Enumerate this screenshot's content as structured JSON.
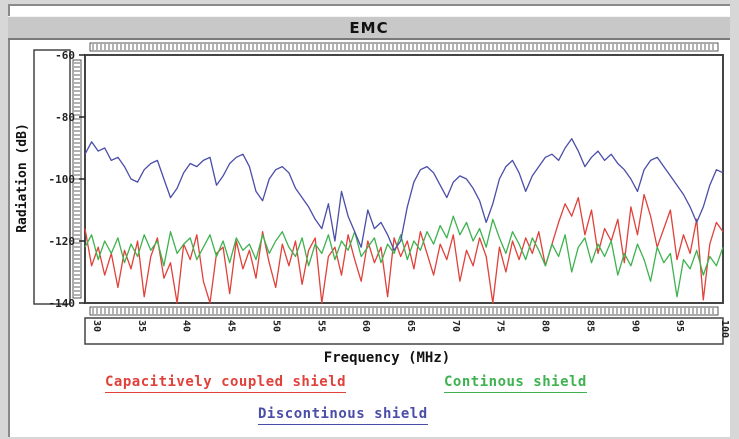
{
  "window": {
    "title": "EMC"
  },
  "chart_data": {
    "type": "line",
    "title": "EMC",
    "xlabel": "Frequency (MHz)",
    "ylabel": "Radiation (dB)",
    "xlim": [
      30,
      1000
    ],
    "ylim": [
      -140,
      -60
    ],
    "x_ticks": [
      30,
      35,
      40,
      45,
      50,
      55,
      60,
      65,
      70,
      75,
      80,
      85,
      90,
      95,
      100
    ],
    "y_ticks": [
      -60,
      -80,
      -100,
      -120,
      -140
    ],
    "grid": false,
    "legend_position": "bottom",
    "series": [
      {
        "name": "Capacitively coupled shield",
        "color": "#e0413a",
        "x": [
          30,
          40,
          50,
          60,
          70,
          80,
          90,
          100,
          110,
          120,
          130,
          140,
          150,
          160,
          170,
          180,
          190,
          200,
          210,
          220,
          230,
          240,
          250,
          260,
          270,
          280,
          290,
          300,
          310,
          320,
          330,
          340,
          350,
          360,
          370,
          380,
          390,
          400,
          410,
          420,
          430,
          440,
          450,
          460,
          470,
          480,
          490,
          500,
          510,
          520,
          530,
          540,
          550,
          560,
          570,
          580,
          590,
          600,
          610,
          620,
          630,
          640,
          650,
          660,
          670,
          680,
          690,
          700,
          710,
          720,
          730,
          740,
          750,
          760,
          770,
          780,
          790,
          800,
          810,
          820,
          830,
          840,
          850,
          860,
          870,
          880,
          890,
          900,
          910,
          920,
          930,
          940,
          950,
          960,
          970,
          980,
          990,
          1000
        ],
        "values": [
          -116,
          -128,
          -122,
          -131,
          -124,
          -135,
          -123,
          -129,
          -120,
          -138,
          -125,
          -119,
          -132,
          -127,
          -140,
          -121,
          -126,
          -118,
          -133,
          -140,
          -124,
          -122,
          -137,
          -120,
          -129,
          -123,
          -132,
          -117,
          -127,
          -135,
          -121,
          -128,
          -120,
          -134,
          -123,
          -119,
          -140,
          -125,
          -122,
          -131,
          -118,
          -126,
          -133,
          -120,
          -127,
          -122,
          -138,
          -119,
          -125,
          -120,
          -129,
          -117,
          -124,
          -131,
          -121,
          -126,
          -118,
          -133,
          -123,
          -128,
          -119,
          -125,
          -140,
          -122,
          -130,
          -120,
          -126,
          -119,
          -124,
          -117,
          -128,
          -121,
          -114,
          -108,
          -112,
          -106,
          -118,
          -110,
          -124,
          -116,
          -120,
          -113,
          -127,
          -109,
          -118,
          -105,
          -112,
          -122,
          -116,
          -110,
          -126,
          -118,
          -124,
          -113,
          -139,
          -121,
          -114,
          -117
        ]
      },
      {
        "name": "Continous shield",
        "color": "#3eb24f",
        "x": [
          30,
          40,
          50,
          60,
          70,
          80,
          90,
          100,
          110,
          120,
          130,
          140,
          150,
          160,
          170,
          180,
          190,
          200,
          210,
          220,
          230,
          240,
          250,
          260,
          270,
          280,
          290,
          300,
          310,
          320,
          330,
          340,
          350,
          360,
          370,
          380,
          390,
          400,
          410,
          420,
          430,
          440,
          450,
          460,
          470,
          480,
          490,
          500,
          510,
          520,
          530,
          540,
          550,
          560,
          570,
          580,
          590,
          600,
          610,
          620,
          630,
          640,
          650,
          660,
          670,
          680,
          690,
          700,
          710,
          720,
          730,
          740,
          750,
          760,
          770,
          780,
          790,
          800,
          810,
          820,
          830,
          840,
          850,
          860,
          870,
          880,
          890,
          900,
          910,
          920,
          930,
          940,
          950,
          960,
          970,
          980,
          990,
          1000
        ],
        "values": [
          -122,
          -118,
          -126,
          -120,
          -124,
          -119,
          -127,
          -121,
          -125,
          -118,
          -123,
          -120,
          -128,
          -117,
          -124,
          -121,
          -119,
          -126,
          -122,
          -118,
          -125,
          -120,
          -127,
          -119,
          -123,
          -121,
          -126,
          -118,
          -124,
          -120,
          -117,
          -122,
          -125,
          -119,
          -128,
          -121,
          -124,
          -118,
          -126,
          -120,
          -123,
          -117,
          -125,
          -122,
          -119,
          -127,
          -121,
          -124,
          -118,
          -126,
          -120,
          -123,
          -117,
          -121,
          -115,
          -119,
          -112,
          -118,
          -114,
          -120,
          -116,
          -122,
          -113,
          -119,
          -124,
          -117,
          -121,
          -126,
          -119,
          -123,
          -128,
          -121,
          -125,
          -118,
          -130,
          -122,
          -119,
          -127,
          -121,
          -125,
          -120,
          -131,
          -124,
          -128,
          -121,
          -126,
          -133,
          -122,
          -127,
          -124,
          -138,
          -126,
          -129,
          -123,
          -131,
          -125,
          -128,
          -122
        ]
      },
      {
        "name": "Discontinous shield",
        "color": "#4a4ea8",
        "x": [
          30,
          40,
          50,
          60,
          70,
          80,
          90,
          100,
          110,
          120,
          130,
          140,
          150,
          160,
          170,
          180,
          190,
          200,
          210,
          220,
          230,
          240,
          250,
          260,
          270,
          280,
          290,
          300,
          310,
          320,
          330,
          340,
          350,
          360,
          370,
          380,
          390,
          400,
          410,
          420,
          430,
          440,
          450,
          460,
          470,
          480,
          490,
          500,
          510,
          520,
          530,
          540,
          550,
          560,
          570,
          580,
          590,
          600,
          610,
          620,
          630,
          640,
          650,
          660,
          670,
          680,
          690,
          700,
          710,
          720,
          730,
          740,
          750,
          760,
          770,
          780,
          790,
          800,
          810,
          820,
          830,
          840,
          850,
          860,
          870,
          880,
          890,
          900,
          910,
          920,
          930,
          940,
          950,
          960,
          970,
          980,
          990,
          1000
        ],
        "values": [
          -92,
          -88,
          -91,
          -90,
          -94,
          -93,
          -96,
          -100,
          -101,
          -97,
          -95,
          -94,
          -100,
          -106,
          -103,
          -98,
          -95,
          -96,
          -94,
          -93,
          -102,
          -99,
          -95,
          -93,
          -92,
          -96,
          -104,
          -107,
          -100,
          -97,
          -96,
          -98,
          -103,
          -106,
          -109,
          -113,
          -116,
          -108,
          -120,
          -104,
          -112,
          -117,
          -122,
          -110,
          -116,
          -114,
          -118,
          -123,
          -120,
          -109,
          -101,
          -97,
          -96,
          -98,
          -102,
          -106,
          -101,
          -99,
          -100,
          -103,
          -107,
          -114,
          -108,
          -100,
          -96,
          -94,
          -98,
          -104,
          -99,
          -96,
          -93,
          -92,
          -94,
          -90,
          -87,
          -91,
          -96,
          -93,
          -91,
          -94,
          -92,
          -95,
          -97,
          -100,
          -104,
          -97,
          -94,
          -93,
          -96,
          -99,
          -102,
          -105,
          -109,
          -114,
          -109,
          -102,
          -97,
          -98
        ]
      }
    ]
  }
}
